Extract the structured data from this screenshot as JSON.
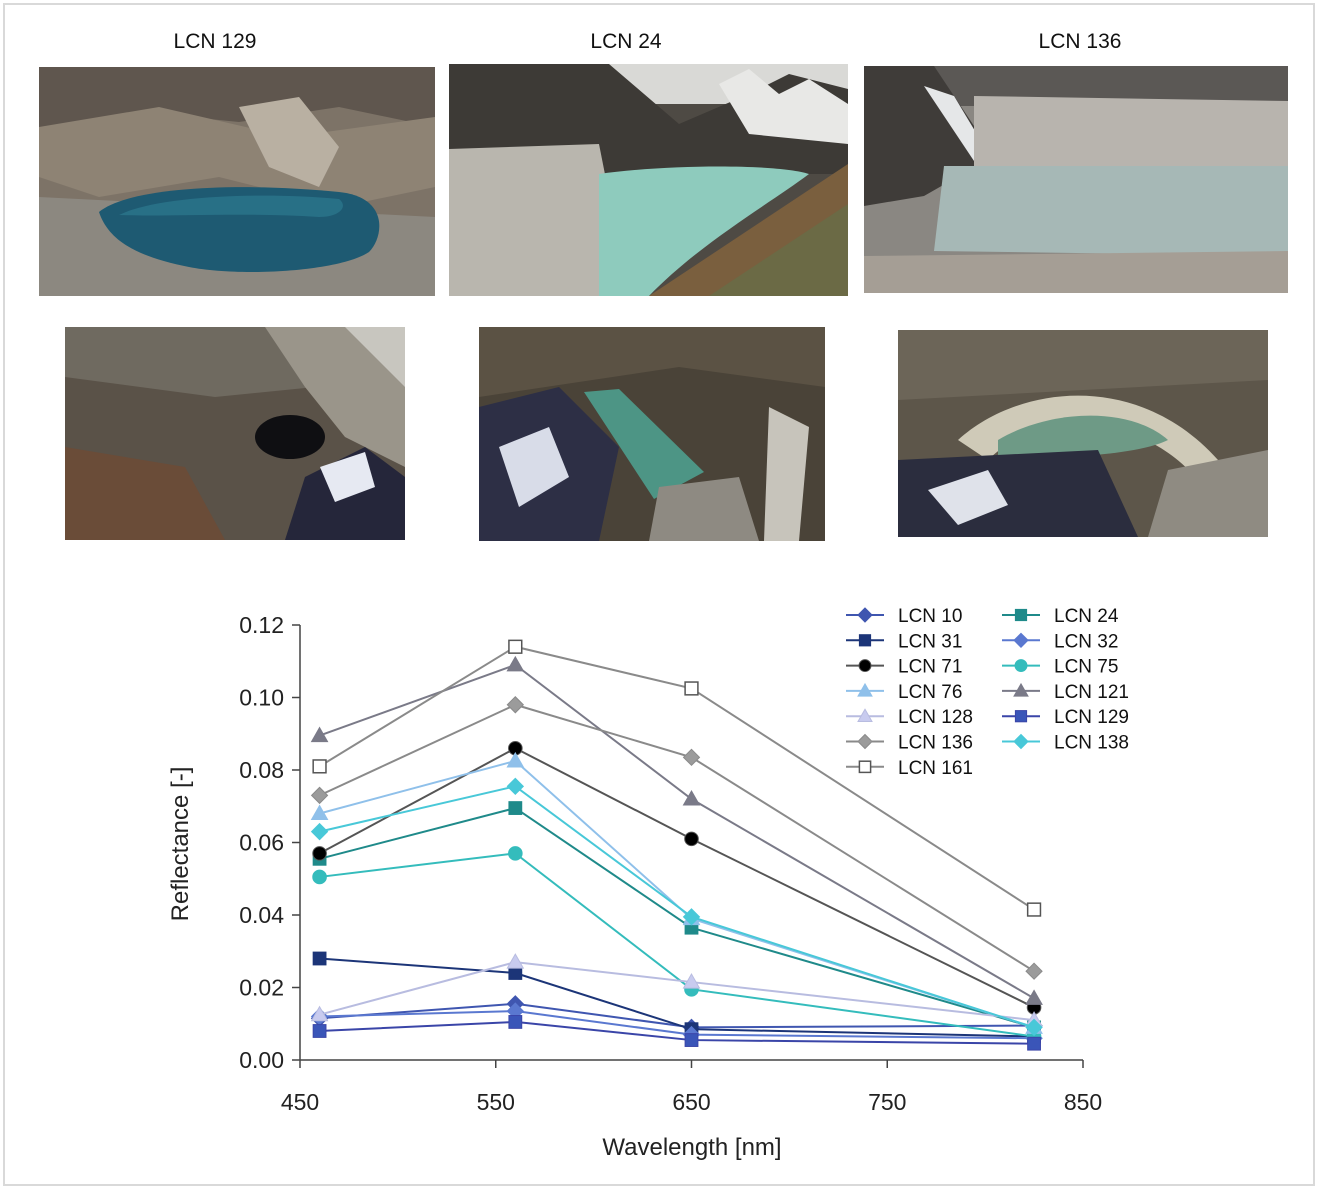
{
  "photos": {
    "titles": [
      "LCN 129",
      "LCN 24",
      "LCN 136"
    ]
  },
  "colors": {
    "lcn129_water": "#1e5a72",
    "lcn24_water": "#8ecbbd",
    "lcn136_water": "#a6b8b6"
  },
  "chart_data": {
    "type": "line",
    "xlabel": "Wavelength [nm]",
    "ylabel": "Reflectance [-]",
    "xlim": [
      450,
      850
    ],
    "ylim": [
      0,
      0.12
    ],
    "xticks": [
      "450",
      "550",
      "650",
      "750",
      "850"
    ],
    "yticks": [
      "0.00",
      "0.02",
      "0.04",
      "0.06",
      "0.08",
      "0.10",
      "0.12"
    ],
    "x": [
      460,
      560,
      650,
      825
    ],
    "legend_position": "top-right",
    "grid": false,
    "series": [
      {
        "name": "LCN 10",
        "values": [
          0.0115,
          0.0155,
          0.009,
          0.0095
        ],
        "color": "#3f56b0",
        "marker": "diamond",
        "fill": "#3f56b0"
      },
      {
        "name": "LCN 24",
        "values": [
          0.0555,
          0.0695,
          0.0365,
          0.009
        ],
        "color": "#1f8a8a",
        "marker": "square",
        "fill": "#1f8a8a"
      },
      {
        "name": "LCN 31",
        "values": [
          0.028,
          0.024,
          0.0085,
          0.0065
        ],
        "color": "#1c3578",
        "marker": "square",
        "fill": "#1c3578"
      },
      {
        "name": "LCN 32",
        "values": [
          0.012,
          0.0135,
          0.007,
          0.006
        ],
        "color": "#5a78d0",
        "marker": "diamond",
        "fill": "#5a78d0"
      },
      {
        "name": "LCN 71",
        "values": [
          0.057,
          0.086,
          0.061,
          0.0145
        ],
        "color": "#555555",
        "marker": "circle",
        "fill": "#000000"
      },
      {
        "name": "LCN 75",
        "values": [
          0.0505,
          0.057,
          0.0195,
          0.0065
        ],
        "color": "#34bcbc",
        "marker": "circle",
        "fill": "#34bcbc"
      },
      {
        "name": "LCN 76",
        "values": [
          0.068,
          0.0825,
          0.039,
          0.009
        ],
        "color": "#8fc0ea",
        "marker": "triangle",
        "fill": "#8fc0ea"
      },
      {
        "name": "LCN 121",
        "values": [
          0.0895,
          0.109,
          0.072,
          0.017
        ],
        "color": "#7a7a88",
        "marker": "triangle",
        "fill": "#7a7a88"
      },
      {
        "name": "LCN 128",
        "values": [
          0.0125,
          0.027,
          0.0215,
          0.011
        ],
        "color": "#b8bce0",
        "marker": "triangle",
        "fill": "#c8cbef"
      },
      {
        "name": "LCN 129",
        "values": [
          0.008,
          0.0105,
          0.0055,
          0.0045
        ],
        "color": "#3a45a8",
        "marker": "square",
        "fill": "#3a55b8"
      },
      {
        "name": "LCN 136",
        "values": [
          0.073,
          0.098,
          0.0835,
          0.0245
        ],
        "color": "#8a8a8a",
        "marker": "diamond",
        "fill": "#9b9b9b"
      },
      {
        "name": "LCN 138",
        "values": [
          0.063,
          0.0755,
          0.0395,
          0.009
        ],
        "color": "#48c8d8",
        "marker": "diamond",
        "fill": "#48c8d8"
      },
      {
        "name": "LCN 161",
        "values": [
          0.081,
          0.114,
          0.1025,
          0.0415
        ],
        "color": "#8a8a8a",
        "marker": "square-open",
        "fill": "#ffffff"
      }
    ]
  }
}
